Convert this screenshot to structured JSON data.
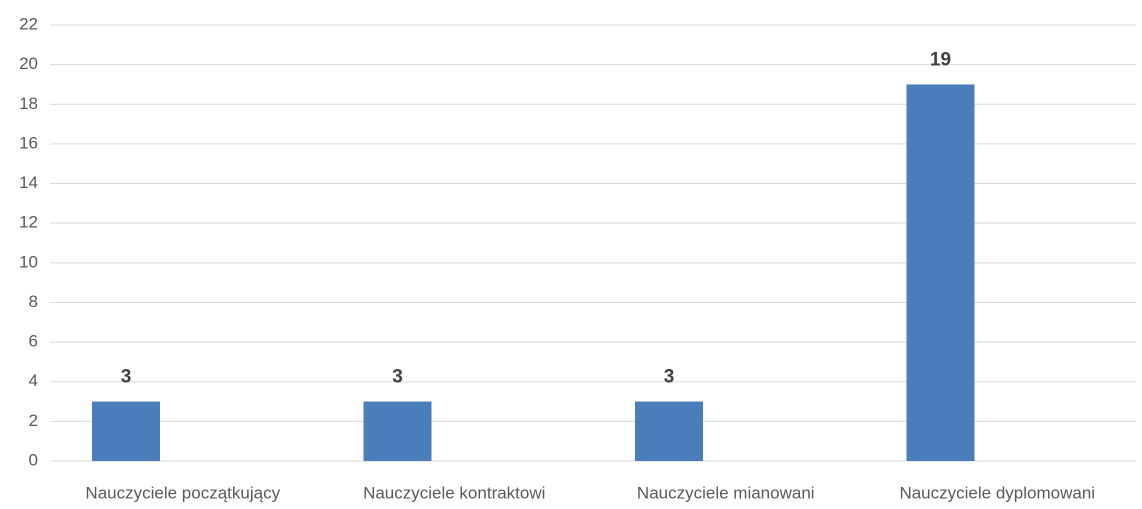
{
  "chart_data": {
    "type": "bar",
    "categories": [
      "Nauczyciele początkujący",
      "Nauczyciele kontraktowi",
      "Nauczyciele mianowani",
      "Nauczyciele dyplomowani"
    ],
    "values": [
      3,
      3,
      3,
      19
    ],
    "color": "#4a7ebb",
    "ylim": [
      0,
      22
    ],
    "yticks": [
      0,
      2,
      4,
      6,
      8,
      10,
      12,
      14,
      16,
      18,
      20,
      22
    ],
    "grid": true
  }
}
